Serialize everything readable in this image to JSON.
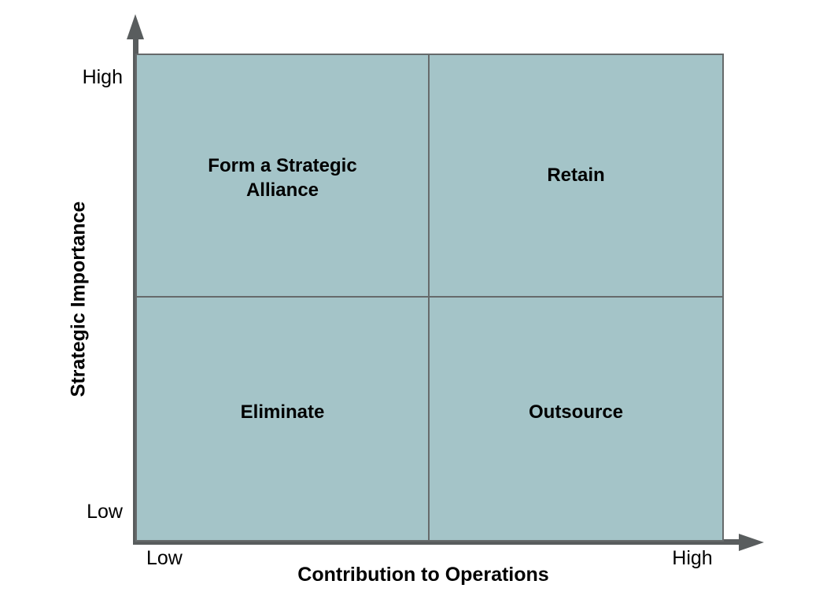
{
  "diagram": {
    "type": "quadrant-matrix",
    "colors": {
      "quadrant_fill": "#a4c4c8",
      "grid_line": "#666a6b",
      "axis": "#595d5e",
      "text": "#000000",
      "background": "#ffffff"
    },
    "y_axis": {
      "title": "Strategic Importance",
      "top_label": "High",
      "bottom_label": "Low"
    },
    "x_axis": {
      "title": "Contribution to Operations",
      "left_label": "Low",
      "right_label": "High"
    },
    "quadrants": [
      {
        "position": "top-left",
        "label": "Form a Strategic Alliance"
      },
      {
        "position": "top-right",
        "label": "Retain"
      },
      {
        "position": "bottom-left",
        "label": "Eliminate"
      },
      {
        "position": "bottom-right",
        "label": "Outsource"
      }
    ]
  }
}
